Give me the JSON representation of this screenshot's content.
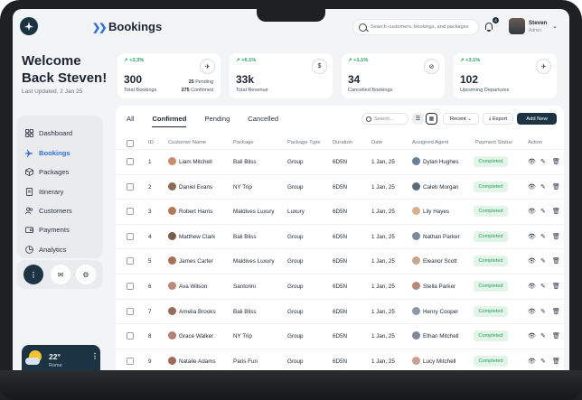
{
  "header": {
    "page_title": "Bookings",
    "search_placeholder": "Search customers, bookings, and packages",
    "notification_count": "4",
    "user_name": "Steven",
    "user_role": "Admin"
  },
  "sidebar": {
    "welcome_line1": "Welcome",
    "welcome_line2": "Back Steven!",
    "last_updated": "Last Updated, 2 Jan 25",
    "items": [
      {
        "label": "Dashboard",
        "icon": "grid-icon"
      },
      {
        "label": "Bookings",
        "icon": "plane-icon"
      },
      {
        "label": "Packages",
        "icon": "box-icon"
      },
      {
        "label": "Itinerary",
        "icon": "document-icon"
      },
      {
        "label": "Customers",
        "icon": "users-icon"
      },
      {
        "label": "Payments",
        "icon": "wallet-icon"
      },
      {
        "label": "Analytics",
        "icon": "pie-chart-icon"
      }
    ],
    "active_item": "Bookings",
    "weather": {
      "temp": "22°",
      "city": "Rome"
    }
  },
  "stats": [
    {
      "trend": "+3.3%",
      "value": "300",
      "label": "Total Bookings",
      "sub1_num": "25",
      "sub1_label": "Pending",
      "sub2_num": "275",
      "sub2_label": "Confirmed",
      "icon": "plane-icon"
    },
    {
      "trend": "+6.1%",
      "value": "33k",
      "label": "Total Revenue",
      "icon": "dollar-icon"
    },
    {
      "trend": "+1.1%",
      "value": "34",
      "label": "Cancelled Bookings",
      "icon": "cancel-plane-icon"
    },
    {
      "trend": "+3.1%",
      "value": "102",
      "label": "Upcoming Departures",
      "icon": "departure-icon"
    }
  ],
  "toolbar": {
    "tabs": [
      "All",
      "Confirmed",
      "Pending",
      "Cancelled"
    ],
    "active_tab": "Confirmed",
    "search_placeholder": "Search...",
    "sort_label": "Recent",
    "export_label": "Export",
    "add_label": "Add New"
  },
  "table": {
    "columns": [
      "ID",
      "Customer Name",
      "Package",
      "Package Type",
      "Duration",
      "Date",
      "Assigned Agent",
      "Payment Status",
      "Action"
    ],
    "rows": [
      {
        "id": "1",
        "customer": "Liam Mitchell",
        "package": "Bali Bliss",
        "type": "Group",
        "duration": "6D5N",
        "date": "1 Jan, 25",
        "agent": "Dylan Hughes",
        "status": "Completed"
      },
      {
        "id": "2",
        "customer": "Daniel Evans",
        "package": "NY Trip",
        "type": "Group",
        "duration": "6D5N",
        "date": "1 Jan, 25",
        "agent": "Caleb Morgan",
        "status": "Completed"
      },
      {
        "id": "3",
        "customer": "Robert Harris",
        "package": "Maldives Luxury",
        "type": "Luxury",
        "duration": "6D5N",
        "date": "1 Jan, 25",
        "agent": "Lily Hayes",
        "status": "Completed"
      },
      {
        "id": "4",
        "customer": "Matthew Clark",
        "package": "Bali Bliss",
        "type": "Group",
        "duration": "6D5N",
        "date": "1 Jan, 25",
        "agent": "Nathan Parker",
        "status": "Completed"
      },
      {
        "id": "5",
        "customer": "James Carter",
        "package": "Maldives Luxury",
        "type": "Group",
        "duration": "6D5N",
        "date": "1 Jan, 25",
        "agent": "Eleanor Scott",
        "status": "Completed"
      },
      {
        "id": "6",
        "customer": "Ava Wilson",
        "package": "Santorini",
        "type": "Group",
        "duration": "6D5N",
        "date": "1 Jan, 25",
        "agent": "Stella Parker",
        "status": "Completed"
      },
      {
        "id": "7",
        "customer": "Amelia Brooks",
        "package": "Bali Bliss",
        "type": "Group",
        "duration": "6D5N",
        "date": "1 Jan, 25",
        "agent": "Henry Cooper",
        "status": "Completed"
      },
      {
        "id": "8",
        "customer": "Grace Walker",
        "package": "NY Trip",
        "type": "Group",
        "duration": "6D5N",
        "date": "1 Jan, 25",
        "agent": "Ethan Mitchell",
        "status": "Completed"
      },
      {
        "id": "9",
        "customer": "Natalie Adams",
        "package": "Paris Fun",
        "type": "Group",
        "duration": "6D5N",
        "date": "1 Jan, 25",
        "agent": "Lucy Mitchell",
        "status": "Completed"
      }
    ]
  },
  "colors": {
    "accent": "#1c3344",
    "active_nav": "#2f6fd8",
    "positive": "#22a05a",
    "status_bg": "#e2f5e8"
  }
}
